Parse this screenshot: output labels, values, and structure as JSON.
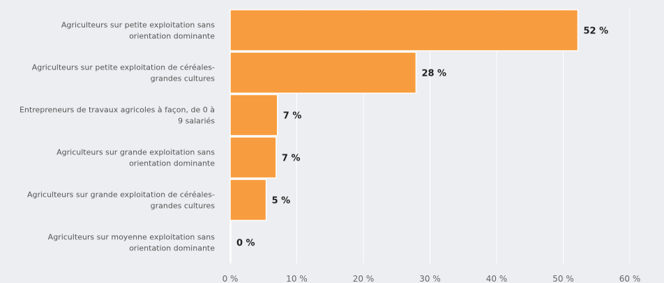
{
  "chart_data": {
    "type": "bar",
    "orientation": "horizontal",
    "categories": [
      [
        "Agriculteurs sur petite exploitation sans",
        "orientation dominante"
      ],
      [
        "Agriculteurs sur petite exploitation de céréales-",
        "grandes cultures"
      ],
      [
        "Entrepreneurs de travaux agricoles à façon, de 0 à",
        "9 salariés"
      ],
      [
        "Agriculteurs sur grande exploitation sans",
        "orientation dominante"
      ],
      [
        "Agriculteurs sur grande exploitation de céréales-",
        "grandes cultures"
      ],
      [
        "Agriculteurs sur moyenne exploitation sans",
        "orientation dominante"
      ]
    ],
    "values": [
      52.2,
      27.9,
      7.1,
      6.9,
      5.4,
      0.1
    ],
    "value_labels": [
      "52 %",
      "28 %",
      "7 %",
      "7 %",
      "5 %",
      "0 %"
    ],
    "xlim": [
      0,
      60
    ],
    "ticks": [
      0,
      10,
      20,
      30,
      40,
      50,
      60
    ],
    "tick_labels": [
      "0 %",
      "10 %",
      "20 %",
      "30 %",
      "40 %",
      "50 %",
      "60 %"
    ],
    "grid": true,
    "legend": "none",
    "bar_color": "#f89d3f",
    "grid_color": "#ffffff",
    "title": "",
    "xlabel": "",
    "ylabel": ""
  }
}
